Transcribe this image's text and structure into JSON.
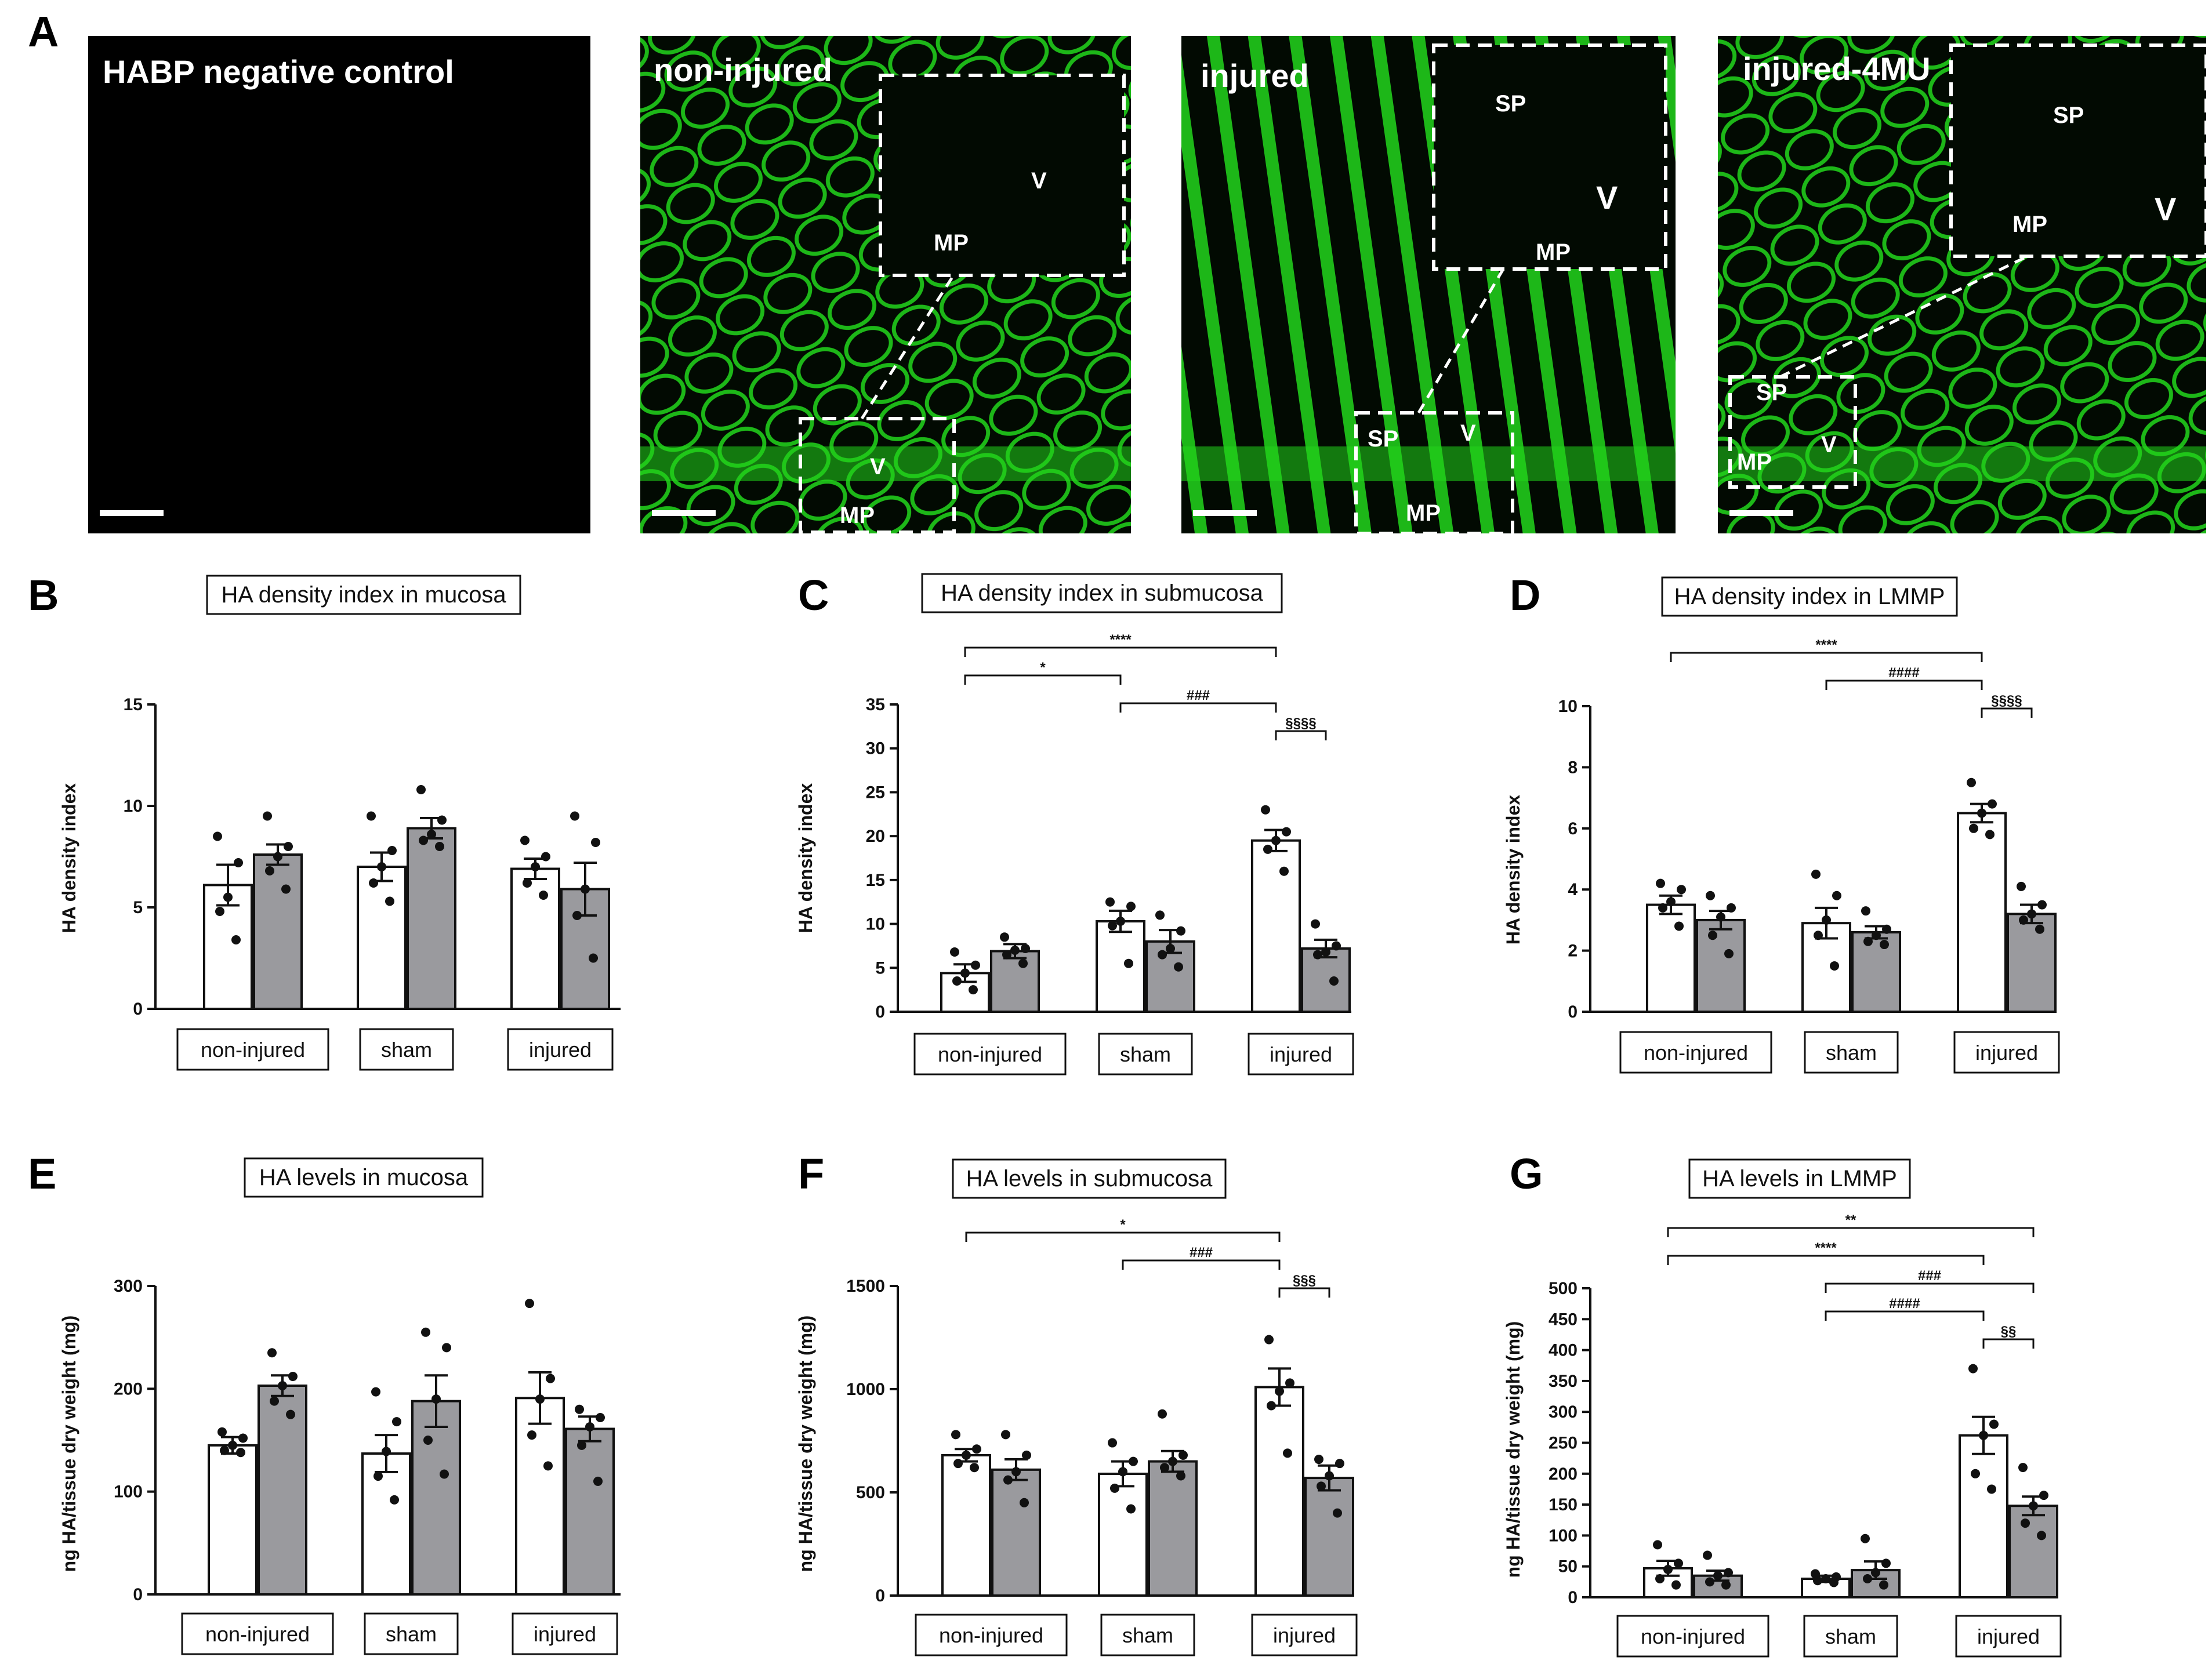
{
  "figure": {
    "panel_a_letter": "A",
    "micrographs": [
      {
        "letter": "",
        "title": "HABP negative control",
        "labels": [],
        "style": "negative"
      },
      {
        "letter": "",
        "title": "non-injured",
        "labels": [
          {
            "text": "V",
            "big": false,
            "loc": "inset"
          },
          {
            "text": "MP",
            "big": false,
            "loc": "inset"
          },
          {
            "text": "V",
            "big": false,
            "loc": "small"
          },
          {
            "text": "MP",
            "big": false,
            "loc": "small"
          }
        ],
        "style": "tissue"
      },
      {
        "letter": "",
        "title": "injured",
        "labels": [
          {
            "text": "SP",
            "big": false,
            "loc": "inset"
          },
          {
            "text": "V",
            "big": true,
            "loc": "inset"
          },
          {
            "text": "MP",
            "big": false,
            "loc": "inset"
          },
          {
            "text": "SP",
            "big": false,
            "loc": "small"
          },
          {
            "text": "V",
            "big": false,
            "loc": "small"
          },
          {
            "text": "MP",
            "big": false,
            "loc": "small"
          }
        ],
        "style": "tissue"
      },
      {
        "letter": "",
        "title": "injured-4MU",
        "labels": [
          {
            "text": "SP",
            "big": false,
            "loc": "inset"
          },
          {
            "text": "MP",
            "big": false,
            "loc": "inset"
          },
          {
            "text": "V",
            "big": true,
            "loc": "inset"
          },
          {
            "text": "SP",
            "big": false,
            "loc": "small"
          },
          {
            "text": "V",
            "big": false,
            "loc": "small"
          },
          {
            "text": "MP",
            "big": false,
            "loc": "small"
          }
        ],
        "style": "tissue"
      }
    ],
    "colors": {
      "fluorescence": "#22d61c",
      "dark_bg": "#020a02",
      "bar_open": "#ffffff",
      "bar_filled": "#9a9a9e",
      "axis": "#111111"
    }
  },
  "chart_data": [
    {
      "panel": "B",
      "type": "bar",
      "title": "HA density index in mucosa",
      "ylabel": "HA density index",
      "ylim": [
        0,
        15
      ],
      "yticks": [
        0,
        5,
        10,
        15
      ],
      "categories": [
        "non-injured",
        "sham",
        "injured"
      ],
      "series": [
        {
          "fill": "open",
          "means": [
            6.1,
            7.0,
            6.9
          ],
          "sem": [
            1.0,
            0.7,
            0.5
          ],
          "points": [
            [
              8.5,
              7.2,
              5.5,
              4.8,
              3.4
            ],
            [
              9.5,
              7.8,
              7.0,
              6.2,
              5.3
            ],
            [
              8.3,
              7.5,
              7.0,
              6.2,
              5.6
            ]
          ]
        },
        {
          "fill": "filled",
          "means": [
            7.6,
            8.9,
            5.9
          ],
          "sem": [
            0.5,
            0.5,
            1.3
          ],
          "points": [
            [
              9.5,
              8.0,
              7.5,
              6.8,
              5.9
            ],
            [
              10.8,
              9.3,
              8.6,
              8.3,
              8.0
            ],
            [
              9.5,
              8.2,
              5.9,
              4.6,
              2.5
            ]
          ]
        }
      ],
      "sig": []
    },
    {
      "panel": "C",
      "type": "bar",
      "title": "HA density index in submucosa",
      "ylabel": "HA density index",
      "ylim": [
        0,
        35
      ],
      "yticks": [
        0,
        5,
        10,
        15,
        20,
        25,
        30,
        35
      ],
      "categories": [
        "non-injured",
        "sham",
        "injured"
      ],
      "series": [
        {
          "fill": "open",
          "means": [
            4.4,
            10.3,
            19.5
          ],
          "sem": [
            1.0,
            1.2,
            1.2
          ],
          "points": [
            [
              6.8,
              5.3,
              4.4,
              3.5,
              2.5
            ],
            [
              12.5,
              12.0,
              10.3,
              9.8,
              5.5
            ],
            [
              23.0,
              20.5,
              19.5,
              18.5,
              16.0
            ]
          ]
        },
        {
          "fill": "filled",
          "means": [
            6.9,
            8.0,
            7.2
          ],
          "sem": [
            0.8,
            1.3,
            1.0
          ],
          "points": [
            [
              8.5,
              7.2,
              7.0,
              6.5,
              5.5
            ],
            [
              11.0,
              9.2,
              7.2,
              6.5,
              5.1
            ],
            [
              10.0,
              7.5,
              6.8,
              6.5,
              3.5
            ]
          ]
        }
      ],
      "sig": [
        {
          "label": "****",
          "from": [
            0,
            0
          ],
          "to": [
            2,
            0
          ],
          "level": 0
        },
        {
          "label": "*",
          "from": [
            0,
            0
          ],
          "to": [
            1,
            0
          ],
          "level": 1
        },
        {
          "label": "###",
          "from": [
            1,
            0
          ],
          "to": [
            2,
            0
          ],
          "level": 2
        },
        {
          "label": "§§§§",
          "from": [
            2,
            0
          ],
          "to": [
            2,
            1
          ],
          "level": 3
        }
      ]
    },
    {
      "panel": "D",
      "type": "bar",
      "title": "HA density index in LMMP",
      "ylabel": "HA density index",
      "ylim": [
        0,
        10
      ],
      "yticks": [
        0,
        2,
        4,
        6,
        8,
        10
      ],
      "categories": [
        "non-injured",
        "sham",
        "injured"
      ],
      "series": [
        {
          "fill": "open",
          "means": [
            3.5,
            2.9,
            6.5
          ],
          "sem": [
            0.3,
            0.5,
            0.3
          ],
          "points": [
            [
              4.2,
              4.0,
              3.6,
              3.4,
              2.8
            ],
            [
              4.5,
              3.8,
              3.0,
              2.5,
              1.5
            ],
            [
              7.5,
              6.8,
              6.5,
              6.0,
              5.8
            ]
          ]
        },
        {
          "fill": "filled",
          "means": [
            3.0,
            2.6,
            3.2
          ],
          "sem": [
            0.3,
            0.2,
            0.3
          ],
          "points": [
            [
              3.8,
              3.4,
              3.1,
              2.5,
              1.9
            ],
            [
              3.3,
              2.7,
              2.5,
              2.3,
              2.2
            ],
            [
              4.1,
              3.5,
              3.2,
              3.0,
              2.7
            ]
          ]
        }
      ],
      "sig": [
        {
          "label": "****",
          "from": [
            0,
            0
          ],
          "to": [
            2,
            0
          ],
          "level": 0
        },
        {
          "label": "####",
          "from": [
            1,
            0
          ],
          "to": [
            2,
            0
          ],
          "level": 1
        },
        {
          "label": "§§§§",
          "from": [
            2,
            0
          ],
          "to": [
            2,
            1
          ],
          "level": 2
        }
      ]
    },
    {
      "panel": "E",
      "type": "bar",
      "title": "HA levels in mucosa",
      "ylabel": "ng HA/tissue dry weight (mg)",
      "ylim": [
        0,
        300
      ],
      "yticks": [
        0,
        100,
        200,
        300
      ],
      "categories": [
        "non-injured",
        "sham",
        "injured"
      ],
      "series": [
        {
          "fill": "open",
          "means": [
            145,
            137,
            191
          ],
          "sem": [
            8,
            18,
            25
          ],
          "points": [
            [
              158,
              152,
              145,
              140,
              138
            ],
            [
              197,
              168,
              139,
              115,
              92
            ],
            [
              283,
              210,
              190,
              155,
              125
            ]
          ]
        },
        {
          "fill": "filled",
          "means": [
            203,
            188,
            161
          ],
          "sem": [
            10,
            25,
            12
          ],
          "points": [
            [
              235,
              212,
              203,
              188,
              175
            ],
            [
              255,
              240,
              190,
              150,
              117
            ],
            [
              180,
              172,
              163,
              145,
              110
            ]
          ]
        }
      ],
      "sig": []
    },
    {
      "panel": "F",
      "type": "bar",
      "title": "HA levels in submucosa",
      "ylabel": "ng HA/tissue dry weight (mg)",
      "ylim": [
        0,
        1500
      ],
      "yticks": [
        0,
        500,
        1000,
        1500
      ],
      "categories": [
        "non-injured",
        "sham",
        "injured"
      ],
      "series": [
        {
          "fill": "open",
          "means": [
            680,
            590,
            1010
          ],
          "sem": [
            30,
            60,
            90
          ],
          "points": [
            [
              780,
              710,
              680,
              640,
              620
            ],
            [
              740,
              650,
              600,
              520,
              420
            ],
            [
              1240,
              1030,
              990,
              920,
              690
            ]
          ]
        },
        {
          "fill": "filled",
          "means": [
            610,
            650,
            570
          ],
          "sem": [
            50,
            50,
            60
          ],
          "points": [
            [
              780,
              680,
              600,
              560,
              450
            ],
            [
              880,
              680,
              650,
              620,
              580
            ],
            [
              660,
              640,
              580,
              530,
              400
            ]
          ]
        }
      ],
      "sig": [
        {
          "label": "*",
          "from": [
            0,
            0
          ],
          "to": [
            2,
            0
          ],
          "level": 0
        },
        {
          "label": "###",
          "from": [
            1,
            0
          ],
          "to": [
            2,
            0
          ],
          "level": 1
        },
        {
          "label": "§§§",
          "from": [
            2,
            0
          ],
          "to": [
            2,
            1
          ],
          "level": 2
        }
      ]
    },
    {
      "panel": "G",
      "type": "bar",
      "title": "HA levels in LMMP",
      "ylabel": "ng HA/tissue dry weight (mg)",
      "ylim": [
        0,
        500
      ],
      "yticks": [
        0,
        50,
        100,
        150,
        200,
        250,
        300,
        350,
        400,
        450,
        500
      ],
      "categories": [
        "non-injured",
        "sham",
        "injured"
      ],
      "series": [
        {
          "fill": "open",
          "means": [
            47,
            30,
            262
          ],
          "sem": [
            12,
            5,
            30
          ],
          "points": [
            [
              85,
              55,
              45,
              30,
              20
            ],
            [
              38,
              33,
              30,
              27,
              24
            ],
            [
              370,
              280,
              262,
              200,
              175
            ]
          ]
        },
        {
          "fill": "filled",
          "means": [
            35,
            44,
            148
          ],
          "sem": [
            8,
            14,
            15
          ],
          "points": [
            [
              68,
              40,
              35,
              25,
              20
            ],
            [
              95,
              55,
              40,
              30,
              20
            ],
            [
              210,
              165,
              148,
              120,
              100
            ]
          ]
        }
      ],
      "sig": [
        {
          "label": "**",
          "from": [
            0,
            0
          ],
          "to": [
            2,
            1
          ],
          "level": 0
        },
        {
          "label": "****",
          "from": [
            0,
            0
          ],
          "to": [
            2,
            0
          ],
          "level": 1
        },
        {
          "label": "###",
          "from": [
            1,
            0
          ],
          "to": [
            2,
            1
          ],
          "level": 2
        },
        {
          "label": "####",
          "from": [
            1,
            0
          ],
          "to": [
            2,
            0
          ],
          "level": 3
        },
        {
          "label": "§§",
          "from": [
            2,
            0
          ],
          "to": [
            2,
            1
          ],
          "level": 4
        }
      ]
    }
  ]
}
